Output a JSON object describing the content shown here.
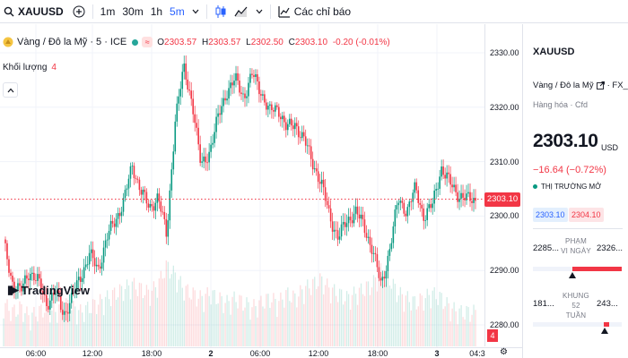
{
  "toolbar": {
    "symbol": "XAUUSD",
    "intervals": [
      "1m",
      "30m",
      "1h",
      "5m"
    ],
    "active_interval": "5m",
    "indicators_label": "Các chỉ báo"
  },
  "legend": {
    "title": "Vàng / Đô la Mỹ · 5 · ICE",
    "o_key": "O",
    "o_val": "2303.57",
    "h_key": "H",
    "h_val": "2303.57",
    "l_key": "L",
    "l_val": "2302.50",
    "c_key": "C",
    "c_val": "2303.10",
    "change": "-0.20 (-0.01%)",
    "volume_label": "Khối lượng",
    "volume_value": "4"
  },
  "branding": {
    "logo_text": "TradingView"
  },
  "price_axis": {
    "ticks": [
      "2330.00",
      "2320.00",
      "2310.00",
      "2300.00",
      "2290.00",
      "2280.00"
    ],
    "current_price_tag": "2303.10",
    "volume_tag": "4"
  },
  "time_axis": {
    "ticks": [
      "06:00",
      "12:00",
      "18:00",
      "2",
      "06:00",
      "12:00",
      "18:00",
      "3",
      "04:3"
    ]
  },
  "chart_data": {
    "type": "candlestick",
    "title": "",
    "xlabel": "",
    "ylabel": "",
    "ylim": [
      2277,
      2335
    ],
    "current_price": 2303.1,
    "close_path": [
      2295,
      2288,
      2286,
      2290,
      2288,
      2284,
      2286,
      2282,
      2285,
      2289,
      2293,
      2290,
      2296,
      2299,
      2303,
      2309,
      2305,
      2301,
      2304,
      2296,
      2318,
      2327,
      2321,
      2309,
      2312,
      2318,
      2323,
      2325,
      2322,
      2326,
      2323,
      2319,
      2320,
      2316,
      2317,
      2314,
      2310,
      2306,
      2300,
      2296,
      2299,
      2301,
      2298,
      2294,
      2287,
      2294,
      2303,
      2301,
      2305,
      2300,
      2302,
      2309,
      2306,
      2304,
      2303,
      2303.1
    ],
    "volume_path": [
      6,
      4,
      5,
      3,
      4,
      5,
      4,
      6,
      5,
      4,
      5,
      6,
      7,
      8,
      9,
      10,
      9,
      8,
      10,
      14,
      12,
      9,
      8,
      7,
      8,
      7,
      6,
      7,
      6,
      5,
      6,
      7,
      6,
      8,
      7,
      9,
      10,
      11,
      9,
      8,
      7,
      8,
      9,
      10,
      13,
      11,
      8,
      7,
      6,
      7,
      8,
      7,
      5,
      4,
      4,
      4
    ]
  },
  "panel": {
    "symbol": "XAUUSD",
    "name": "Vàng / Đô la Mỹ",
    "source": "FX_IDC",
    "category": "Hàng hóa · Cfd",
    "price": "2303.10",
    "currency": "USD",
    "change": "−16.64 (−0.72%)",
    "market_status": "THỊ TRƯỜNG MỞ",
    "bid": "2303.10",
    "ask": "2304.10",
    "day_range": {
      "low": "2285...",
      "high": "2326...",
      "label": "PHẠM VI NGÀY",
      "fill_start_pct": 44,
      "fill_end_pct": 100,
      "marker_pct": 44
    },
    "week52_range": {
      "low": "181...",
      "high": "243...",
      "label": "KHUNG 52 TUẦN",
      "fill_start_pct": 80,
      "fill_end_pct": 86,
      "marker_pct": 81
    }
  },
  "colors": {
    "up": "#089981",
    "down": "#f23645",
    "accent": "#2962ff"
  }
}
